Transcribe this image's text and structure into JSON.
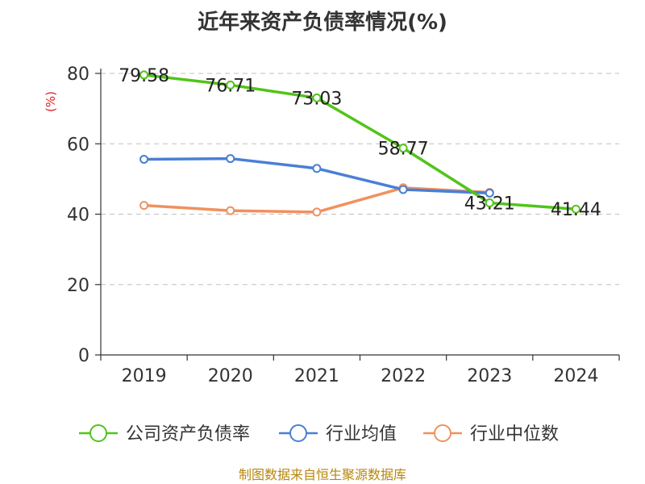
{
  "chart_data": {
    "type": "line",
    "title": "近年来资产负债率情况(%)",
    "ylabel": "(%)",
    "categories": [
      "2019",
      "2020",
      "2021",
      "2022",
      "2023",
      "2024"
    ],
    "ylim": [
      0,
      80
    ],
    "yticks": [
      0,
      20,
      40,
      60,
      80
    ],
    "grid": true,
    "legend_position": "bottom",
    "series": [
      {
        "name": "公司资产负债率",
        "color": "#52c41a",
        "values": [
          79.58,
          76.71,
          73.03,
          58.77,
          43.21,
          41.44
        ],
        "labels": [
          "79.58",
          "76.71",
          "73.03",
          "58.77",
          "43.21",
          "41.44"
        ]
      },
      {
        "name": "行业均值",
        "color": "#4a7fd6",
        "values": [
          55.6,
          55.8,
          53.0,
          47.0,
          46.0,
          null
        ]
      },
      {
        "name": "行业中位数",
        "color": "#f0915f",
        "values": [
          42.5,
          41.0,
          40.6,
          47.5,
          46.2,
          null
        ]
      }
    ],
    "source": "制图数据来自恒生聚源数据库",
    "source_color": "#b8860b",
    "unit_color": "#e02020"
  }
}
